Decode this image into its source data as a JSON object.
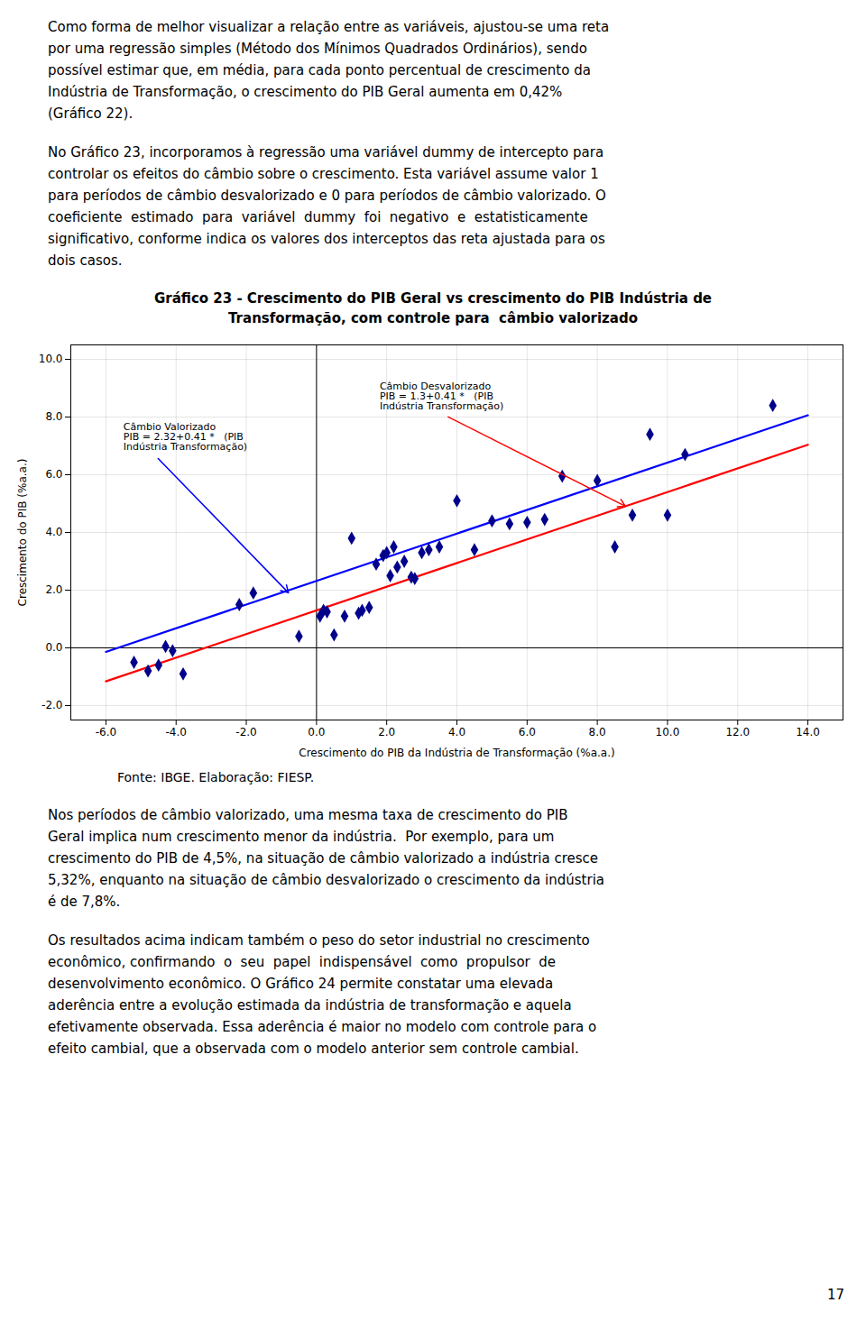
{
  "paragraphs_before": [
    [
      "Como forma de melhor visualizar a relação entre as variáveis, ajustou-se uma reta",
      "por uma regressão simples (Método dos Mínimos Quadrados Ordinários), sendo",
      "possível estimar que, em média, para cada ponto percentual de crescimento da",
      "Indústria de Transformação, o crescimento do PIB Geral aumenta em 0,42%",
      "(Gráfico 22)."
    ],
    [
      "No Gráfico 23, incorporamos à regressão uma variável dummy de intercepto para",
      "controlar os efeitos do câmbio sobre o crescimento. Esta variável assume valor 1",
      "para períodos de câmbio desvalorizado e 0 para períodos de câmbio valorizado. O",
      "coeficiente  estimado  para  variável  dummy  foi  negativo  e  estatisticamente",
      "significativo, conforme indica os valores dos interceptos das reta ajustada para os",
      "dois casos."
    ]
  ],
  "paragraphs_after": [
    [
      "Nos períodos de câmbio valorizado, uma mesma taxa de crescimento do PIB",
      "Geral implica num crescimento menor da indústria.  Por exemplo, para um",
      "crescimento do PIB de 4,5%, na situação de câmbio valorizado a indústria cresce",
      "5,32%, enquanto na situação de câmbio desvalorizado o crescimento da indústria",
      "é de 7,8%."
    ],
    [
      "Os resultados acima indicam também o peso do setor industrial no crescimento",
      "econômico, confirmando  o  seu  papel  indispensável  como  propulsor  de",
      "desenvolvimento econômico. O Gráfico 24 permite constatar uma elevada",
      "aderência entre a evolução estimada da indústria de transformação e aquela",
      "efetivamente observada. Essa aderência é maior no modelo com controle para o",
      "efeito cambial, que a observada com o modelo anterior sem controle cambial."
    ]
  ],
  "page_number": "17",
  "chart_data": {
    "type": "scatter",
    "title": "Gráfico 23 - Crescimento do PIB Geral ​vs crescimento do PIB Indústria de\nTransformação, com controle para  câmbio valorizado",
    "xlabel": "Crescimento do PIB da Indústria de Transformação (%a.a.)",
    "ylabel": "Crescimento do PIB (%a.a.)",
    "source": "Fonte: IBGE. Elaboração: FIESP.",
    "xlim": [
      -7.0,
      15.0
    ],
    "ylim": [
      -2.5,
      10.5
    ],
    "xticks": [
      {
        "value": -6,
        "label": "-6.0"
      },
      {
        "value": -4,
        "label": "-4.0"
      },
      {
        "value": -2,
        "label": "-2.0"
      },
      {
        "value": 0,
        "label": "0.0"
      },
      {
        "value": 2,
        "label": "2.0"
      },
      {
        "value": 4,
        "label": "4.0"
      },
      {
        "value": 6,
        "label": "6.0"
      },
      {
        "value": 8,
        "label": "8.0"
      },
      {
        "value": 10,
        "label": "10.0"
      },
      {
        "value": 12,
        "label": "12.0"
      },
      {
        "value": 14,
        "label": "14.0"
      }
    ],
    "yticks": [
      {
        "value": -2,
        "label": "-2.0"
      },
      {
        "value": 0,
        "label": "0.0"
      },
      {
        "value": 2,
        "label": "2.0"
      },
      {
        "value": 4,
        "label": "4.0"
      },
      {
        "value": 6,
        "label": "6.0"
      },
      {
        "value": 8,
        "label": "8.0"
      },
      {
        "value": 10,
        "label": "10.0"
      }
    ],
    "grid": true,
    "reference_lines": {
      "x": [
        0
      ],
      "y": [
        0
      ]
    },
    "series": [
      {
        "type": "scatter",
        "color": "#00008B",
        "marker": "diamond",
        "x": [
          -5.2,
          -4.8,
          -4.5,
          -4.3,
          -4.1,
          -3.8,
          -2.2,
          -1.8,
          -0.5,
          0.1,
          0.2,
          0.3,
          0.5,
          0.8,
          1.0,
          1.2,
          1.3,
          1.5,
          1.7,
          1.9,
          2.0,
          2.1,
          2.2,
          2.3,
          2.5,
          2.7,
          2.8,
          3.0,
          3.2,
          3.5,
          4.0,
          4.5,
          5.0,
          5.5,
          6.0,
          6.5,
          7.0,
          8.0,
          8.5,
          9.0,
          9.5,
          10.0,
          10.5,
          13.0
        ],
        "values": [
          -0.5,
          -0.8,
          -0.6,
          0.05,
          -0.1,
          -0.9,
          1.5,
          1.9,
          0.4,
          1.1,
          1.3,
          1.25,
          0.45,
          1.1,
          3.8,
          1.2,
          1.3,
          1.4,
          2.9,
          3.2,
          3.3,
          2.5,
          3.5,
          2.8,
          3.0,
          2.45,
          2.4,
          3.3,
          3.4,
          3.5,
          5.1,
          3.4,
          4.4,
          4.3,
          4.35,
          4.45,
          5.95,
          5.8,
          3.5,
          4.6,
          7.4,
          4.6,
          6.7,
          8.4
        ]
      },
      {
        "type": "line",
        "color": "#0000FF",
        "x": [
          -6.0,
          14.0
        ],
        "values": [
          -0.14,
          8.06
        ]
      },
      {
        "type": "line",
        "color": "#FF0000",
        "x": [
          -6.0,
          14.0
        ],
        "values": [
          -1.16,
          7.04
        ]
      }
    ],
    "annotations": [
      {
        "text": "Câmbio Valorizado\nPIB = 2.32+0.41 *   (PIB\nIndústria Transformação)",
        "x": -0.8,
        "y": 1.91,
        "text_x": -5.5,
        "text_y": 7.8,
        "color": "#0000FF"
      },
      {
        "text": "Câmbio Desvalorizado\nPIB = 1.3+0.41 *   (PIB\nIndústria Transformação)",
        "x": 8.8,
        "y": 4.91,
        "text_x": 1.8,
        "text_y": 9.2,
        "color": "#FF0000"
      }
    ]
  }
}
